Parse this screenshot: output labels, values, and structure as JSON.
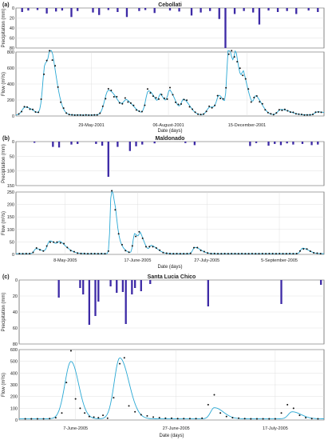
{
  "figure": {
    "flow_label": "Flow (m³/s)",
    "precip_label": "Precipitation (mm)",
    "xlabel": "Date (days)"
  },
  "colors": {
    "precip_bar": "#3d2aa6",
    "simulated_line": "#29a8d4",
    "observed_marker": "#111111",
    "axis": "#333333",
    "grid": "#d9d9d9"
  },
  "chart_data": [
    {
      "panel": "(a)",
      "title": "Cebollati",
      "type": "line",
      "precip": {
        "ylim": [
          0,
          80
        ],
        "yticks": [
          0,
          20,
          40,
          60,
          80
        ],
        "bars": [
          [
            0.02,
            8
          ],
          [
            0.04,
            5
          ],
          [
            0.07,
            4
          ],
          [
            0.1,
            11
          ],
          [
            0.13,
            7
          ],
          [
            0.15,
            5
          ],
          [
            0.18,
            18
          ],
          [
            0.2,
            6
          ],
          [
            0.25,
            9
          ],
          [
            0.27,
            14
          ],
          [
            0.3,
            4
          ],
          [
            0.33,
            8
          ],
          [
            0.36,
            18
          ],
          [
            0.4,
            6
          ],
          [
            0.42,
            4
          ],
          [
            0.45,
            10
          ],
          [
            0.5,
            5
          ],
          [
            0.53,
            7
          ],
          [
            0.57,
            15
          ],
          [
            0.6,
            9
          ],
          [
            0.63,
            6
          ],
          [
            0.66,
            22
          ],
          [
            0.68,
            80
          ],
          [
            0.71,
            12
          ],
          [
            0.74,
            6
          ],
          [
            0.77,
            9
          ],
          [
            0.79,
            33
          ],
          [
            0.82,
            5
          ],
          [
            0.85,
            8
          ],
          [
            0.88,
            6
          ],
          [
            0.91,
            12
          ],
          [
            0.95,
            5
          ],
          [
            0.98,
            8
          ]
        ]
      },
      "flow": {
        "ylim": [
          0,
          800
        ],
        "yticks": [
          0,
          200,
          400,
          600,
          800
        ],
        "xticks": [
          {
            "pos": 0.245,
            "label": "29-May-2001"
          },
          {
            "pos": 0.495,
            "label": "06-August-2001"
          },
          {
            "pos": 0.75,
            "label": "15-December-2001"
          }
        ],
        "peaks": [
          [
            0.03,
            100,
            0.01,
            0.025
          ],
          [
            0.095,
            640,
            0.008,
            0.022
          ],
          [
            0.115,
            420,
            0.007,
            0.02
          ],
          [
            0.3,
            310,
            0.012,
            0.03
          ],
          [
            0.36,
            150,
            0.01,
            0.025
          ],
          [
            0.43,
            300,
            0.009,
            0.025
          ],
          [
            0.47,
            180,
            0.006,
            0.02
          ],
          [
            0.5,
            250,
            0.007,
            0.02
          ],
          [
            0.545,
            180,
            0.008,
            0.02
          ],
          [
            0.63,
            100,
            0.01,
            0.025
          ],
          [
            0.66,
            200,
            0.008,
            0.02
          ],
          [
            0.69,
            790,
            0.005,
            0.018
          ],
          [
            0.715,
            480,
            0.006,
            0.02
          ],
          [
            0.74,
            300,
            0.006,
            0.02
          ],
          [
            0.78,
            200,
            0.007,
            0.02
          ],
          [
            0.86,
            70,
            0.01,
            0.03
          ],
          [
            0.98,
            40,
            0.01,
            0.03
          ]
        ],
        "baseflow": 12
      }
    },
    {
      "panel": "(b)",
      "title": "Maldonado",
      "type": "line",
      "precip": {
        "ylim": [
          0,
          150
        ],
        "yticks": [
          0,
          50,
          100,
          150
        ],
        "bars": [
          [
            0.06,
            4
          ],
          [
            0.12,
            18
          ],
          [
            0.14,
            20
          ],
          [
            0.18,
            10
          ],
          [
            0.2,
            8
          ],
          [
            0.26,
            8
          ],
          [
            0.28,
            14
          ],
          [
            0.3,
            120
          ],
          [
            0.33,
            18
          ],
          [
            0.37,
            32
          ],
          [
            0.39,
            16
          ],
          [
            0.41,
            10
          ],
          [
            0.45,
            6
          ],
          [
            0.55,
            5
          ],
          [
            0.58,
            12
          ],
          [
            0.76,
            15
          ],
          [
            0.78,
            5
          ],
          [
            0.82,
            14
          ],
          [
            0.84,
            8
          ],
          [
            0.86,
            12
          ],
          [
            0.88,
            6
          ],
          [
            0.9,
            10
          ],
          [
            0.93,
            8
          ],
          [
            0.96,
            12
          ],
          [
            0.98,
            10
          ]
        ]
      },
      "flow": {
        "ylim": [
          0,
          250
        ],
        "yticks": [
          0,
          50,
          100,
          150,
          200,
          250
        ],
        "xticks": [
          {
            "pos": 0.16,
            "label": "8-May-2005"
          },
          {
            "pos": 0.395,
            "label": "17-June-2005"
          },
          {
            "pos": 0.62,
            "label": "27-July-2005"
          },
          {
            "pos": 0.855,
            "label": "5-September-2005"
          }
        ],
        "peaks": [
          [
            0.065,
            20,
            0.006,
            0.02
          ],
          [
            0.11,
            50,
            0.008,
            0.025
          ],
          [
            0.145,
            30,
            0.008,
            0.025
          ],
          [
            0.31,
            262,
            0.004,
            0.012
          ],
          [
            0.325,
            45,
            0.004,
            0.02
          ],
          [
            0.385,
            80,
            0.005,
            0.015
          ],
          [
            0.405,
            50,
            0.005,
            0.015
          ],
          [
            0.44,
            30,
            0.006,
            0.02
          ],
          [
            0.58,
            25,
            0.006,
            0.02
          ],
          [
            0.93,
            22,
            0.006,
            0.02
          ]
        ],
        "baseflow": 3
      }
    },
    {
      "panel": "(c)",
      "title": "Santa Lucia Chico",
      "type": "line",
      "precip": {
        "ylim": [
          0,
          80
        ],
        "yticks": [
          0,
          20,
          40,
          60,
          80
        ],
        "bars": [
          [
            0.13,
            22
          ],
          [
            0.2,
            10
          ],
          [
            0.21,
            18
          ],
          [
            0.23,
            56
          ],
          [
            0.25,
            45
          ],
          [
            0.26,
            27
          ],
          [
            0.3,
            8
          ],
          [
            0.32,
            16
          ],
          [
            0.34,
            15
          ],
          [
            0.35,
            55
          ],
          [
            0.37,
            18
          ],
          [
            0.38,
            10
          ],
          [
            0.4,
            14
          ],
          [
            0.43,
            5
          ],
          [
            0.62,
            33
          ],
          [
            0.86,
            30
          ],
          [
            0.99,
            6
          ]
        ]
      },
      "flow": {
        "ylim": [
          0,
          600
        ],
        "yticks": [
          0,
          100,
          200,
          300,
          400,
          500,
          600
        ],
        "xticks": [
          {
            "pos": 0.185,
            "label": "7-June-2005"
          },
          {
            "pos": 0.515,
            "label": "27-June-2005"
          },
          {
            "pos": 0.84,
            "label": "17-July-2005"
          }
        ],
        "peaks": [
          [
            0.17,
            490,
            0.02,
            0.025
          ],
          [
            0.33,
            520,
            0.018,
            0.03
          ],
          [
            0.64,
            95,
            0.012,
            0.03
          ],
          [
            0.895,
            60,
            0.012,
            0.03
          ]
        ],
        "baseflow": 10,
        "observed": [
          [
            0.02,
            10
          ],
          [
            0.04,
            10
          ],
          [
            0.06,
            10
          ],
          [
            0.08,
            10
          ],
          [
            0.1,
            12
          ],
          [
            0.12,
            20
          ],
          [
            0.14,
            60
          ],
          [
            0.155,
            320
          ],
          [
            0.17,
            590
          ],
          [
            0.185,
            180
          ],
          [
            0.2,
            100
          ],
          [
            0.215,
            60
          ],
          [
            0.23,
            30
          ],
          [
            0.245,
            25
          ],
          [
            0.26,
            20
          ],
          [
            0.275,
            40
          ],
          [
            0.29,
            15
          ],
          [
            0.31,
            190
          ],
          [
            0.33,
            480
          ],
          [
            0.345,
            530
          ],
          [
            0.36,
            120
          ],
          [
            0.38,
            70
          ],
          [
            0.4,
            45
          ],
          [
            0.42,
            35
          ],
          [
            0.44,
            25
          ],
          [
            0.46,
            20
          ],
          [
            0.48,
            15
          ],
          [
            0.5,
            15
          ],
          [
            0.52,
            12
          ],
          [
            0.54,
            12
          ],
          [
            0.56,
            12
          ],
          [
            0.58,
            12
          ],
          [
            0.6,
            15
          ],
          [
            0.62,
            130
          ],
          [
            0.64,
            215
          ],
          [
            0.66,
            60
          ],
          [
            0.68,
            30
          ],
          [
            0.7,
            20
          ],
          [
            0.72,
            15
          ],
          [
            0.74,
            12
          ],
          [
            0.76,
            10
          ],
          [
            0.78,
            10
          ],
          [
            0.8,
            10
          ],
          [
            0.82,
            10
          ],
          [
            0.84,
            10
          ],
          [
            0.86,
            60
          ],
          [
            0.88,
            130
          ],
          [
            0.9,
            100
          ],
          [
            0.92,
            40
          ],
          [
            0.94,
            20
          ],
          [
            0.96,
            12
          ],
          [
            0.98,
            10
          ]
        ]
      }
    }
  ]
}
